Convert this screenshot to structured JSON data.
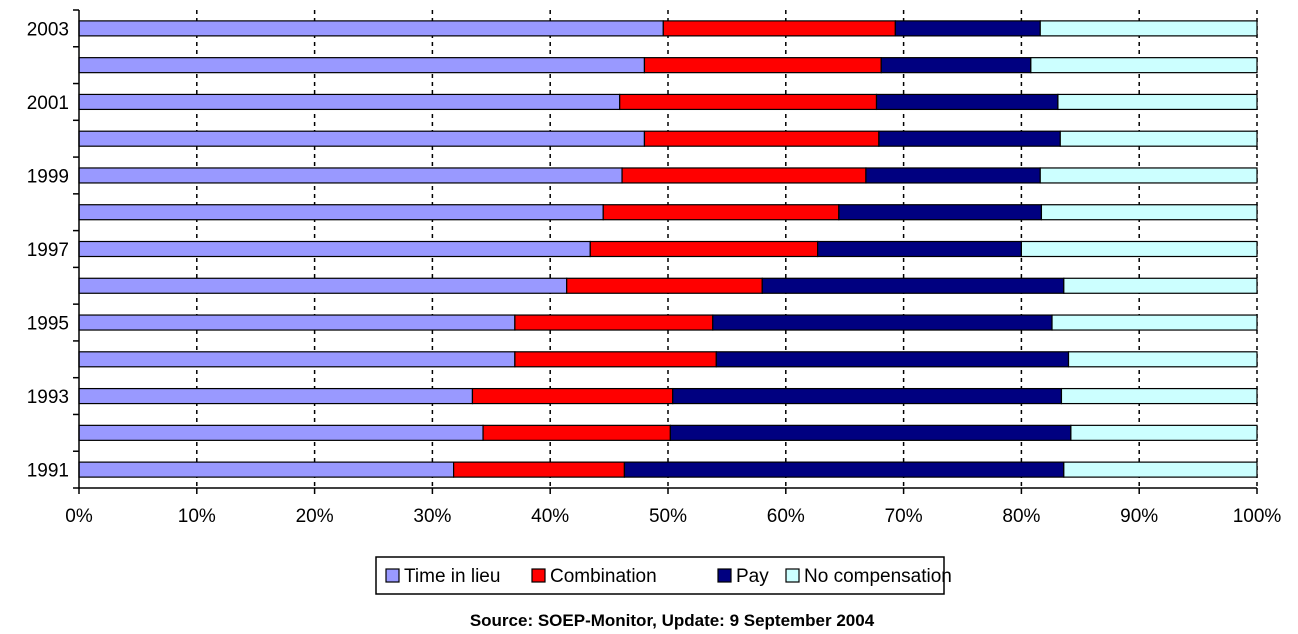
{
  "chart_data": {
    "type": "bar",
    "orientation": "horizontal",
    "stacked": "percent",
    "categories": [
      "1991",
      "",
      "1993",
      "",
      "1995",
      "",
      "1997",
      "",
      "1999",
      "",
      "2001",
      "",
      "2003"
    ],
    "years": [
      1991,
      1992,
      1993,
      1994,
      1995,
      1996,
      1997,
      1998,
      1999,
      2000,
      2001,
      2002,
      2003
    ],
    "series": [
      {
        "name": "Time in lieu",
        "color": "#9999ff",
        "values": [
          31.8,
          34.3,
          33.4,
          37.0,
          37.0,
          41.4,
          43.4,
          44.5,
          46.1,
          48.0,
          45.9,
          48.0,
          49.6
        ]
      },
      {
        "name": "Combination",
        "color": "#ff0000",
        "values": [
          14.5,
          15.9,
          17.0,
          17.1,
          16.8,
          16.6,
          19.3,
          20.0,
          20.7,
          19.9,
          21.8,
          20.1,
          19.7
        ]
      },
      {
        "name": "Pay",
        "color": "#000080",
        "values": [
          37.3,
          34.0,
          33.0,
          29.9,
          28.8,
          25.6,
          17.3,
          17.2,
          14.8,
          15.4,
          15.4,
          12.7,
          12.3
        ]
      },
      {
        "name": "No compensation",
        "color": "#ccffff",
        "values": [
          16.4,
          15.8,
          16.6,
          16.0,
          17.4,
          16.4,
          20.0,
          18.3,
          18.4,
          16.7,
          16.9,
          19.2,
          18.4
        ]
      }
    ],
    "x_ticks": [
      "0%",
      "10%",
      "20%",
      "30%",
      "40%",
      "50%",
      "60%",
      "70%",
      "80%",
      "90%",
      "100%"
    ],
    "xlim": [
      0,
      100
    ],
    "grid": "vertical-dashed",
    "legend": "bottom-center",
    "source": "Source: SOEP-Monitor, Update: 9 September 2004"
  }
}
